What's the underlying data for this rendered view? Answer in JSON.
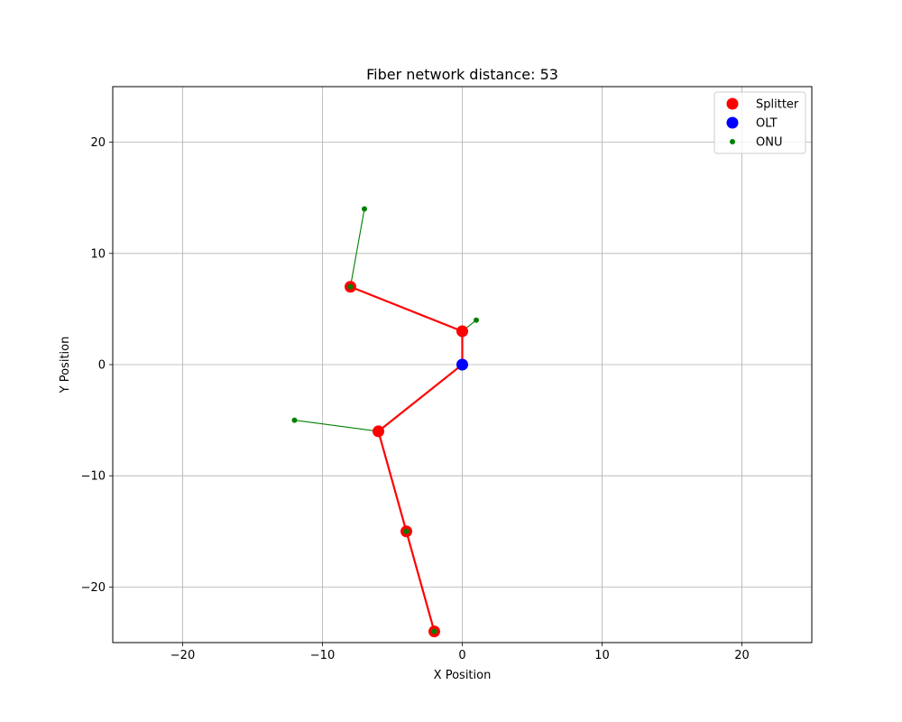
{
  "chart_data": {
    "type": "scatter",
    "title": "Fiber network distance: 53",
    "xlabel": "X Position",
    "ylabel": "Y Position",
    "xlim": [
      -25,
      25
    ],
    "ylim": [
      -25,
      25
    ],
    "xticks": [
      -20,
      -10,
      0,
      10,
      20
    ],
    "yticks": [
      -20,
      -10,
      0,
      10,
      20
    ],
    "xtick_labels": [
      "−20",
      "−10",
      "0",
      "10",
      "20"
    ],
    "ytick_labels": [
      "−20",
      "−10",
      "0",
      "10",
      "20"
    ],
    "grid": true,
    "legend_position": "top-right",
    "series": [
      {
        "name": "Splitter",
        "color": "#ff0000",
        "marker": "circle-large",
        "points": [
          [
            0,
            3
          ],
          [
            -8,
            7
          ],
          [
            -6,
            -6
          ],
          [
            -4,
            -15
          ],
          [
            -2,
            -24
          ]
        ]
      },
      {
        "name": "OLT",
        "color": "#0000ff",
        "marker": "circle-large",
        "points": [
          [
            0,
            0
          ]
        ]
      },
      {
        "name": "ONU",
        "color": "#008000",
        "marker": "circle-small",
        "points": [
          [
            -7,
            14
          ],
          [
            -8,
            7
          ],
          [
            1,
            4
          ],
          [
            -12,
            -5
          ],
          [
            -4,
            -15
          ],
          [
            -2,
            -24
          ]
        ]
      }
    ],
    "fiber_links": {
      "color": "#ff0000",
      "segments": [
        [
          [
            0,
            0
          ],
          [
            0,
            3
          ]
        ],
        [
          [
            0,
            3
          ],
          [
            -8,
            7
          ]
        ],
        [
          [
            0,
            0
          ],
          [
            -6,
            -6
          ]
        ],
        [
          [
            -6,
            -6
          ],
          [
            -4,
            -15
          ]
        ],
        [
          [
            -4,
            -15
          ],
          [
            -2,
            -24
          ]
        ]
      ]
    },
    "drop_links": {
      "color": "#008000",
      "segments": [
        [
          [
            -8,
            7
          ],
          [
            -7,
            14
          ]
        ],
        [
          [
            0,
            3
          ],
          [
            1,
            4
          ]
        ],
        [
          [
            -6,
            -6
          ],
          [
            -12,
            -5
          ]
        ],
        [
          [
            -4,
            -15
          ],
          [
            -4,
            -15
          ]
        ],
        [
          [
            -2,
            -24
          ],
          [
            -2,
            -24
          ]
        ],
        [
          [
            -8,
            7
          ],
          [
            -8,
            7
          ]
        ]
      ]
    }
  }
}
